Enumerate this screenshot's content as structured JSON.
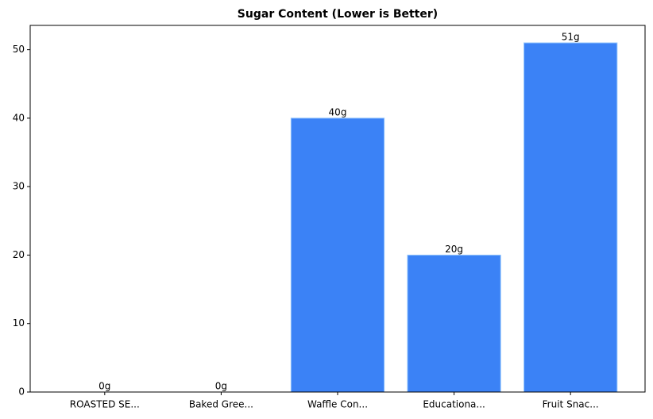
{
  "chart_data": {
    "type": "bar",
    "title": "Sugar Content (Lower is Better)",
    "categories": [
      "ROASTED SE...",
      "Baked Gree...",
      "Waffle Con...",
      "Educationa...",
      "Fruit Snac..."
    ],
    "values": [
      0,
      0,
      40,
      20,
      51
    ],
    "value_labels": [
      "0g",
      "0g",
      "40g",
      "20g",
      "51g"
    ],
    "color": "#3b82f6",
    "ylim": [
      0,
      53.55
    ],
    "yticks": [
      0,
      10,
      20,
      30,
      40,
      50
    ],
    "grid": false
  }
}
